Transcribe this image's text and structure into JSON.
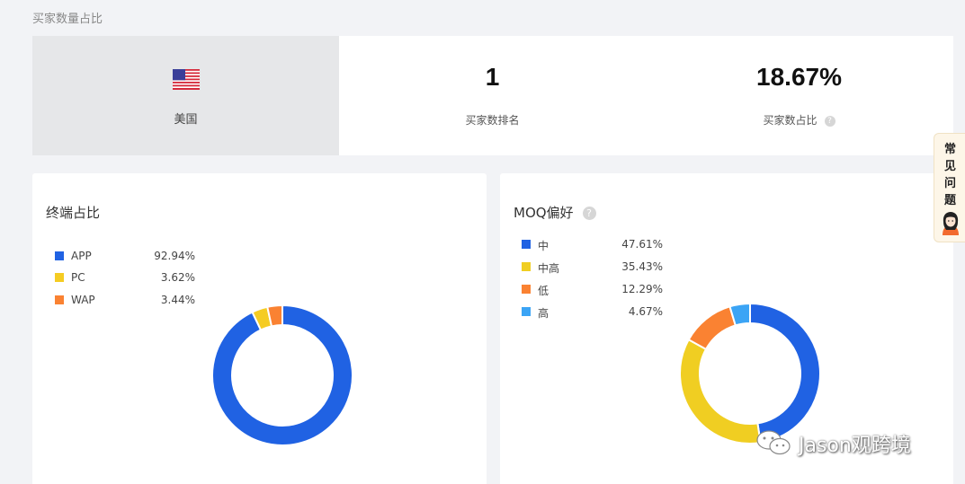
{
  "section_title": "买家数量占比",
  "stats": {
    "country": "美国",
    "rank_value": "1",
    "rank_label": "买家数排名",
    "share_value": "18.67%",
    "share_label": "买家数占比"
  },
  "help_glyph": "?",
  "faq": {
    "label": "常见问题"
  },
  "watermark": {
    "text": "Jason观跨境"
  },
  "chart_data": [
    {
      "type": "pie",
      "title": "终端占比",
      "categories": [
        "APP",
        "PC",
        "WAP"
      ],
      "values": [
        92.94,
        3.62,
        3.44
      ],
      "labels": [
        "92.94%",
        "3.62%",
        "3.44%"
      ],
      "colors": [
        "#2062e3",
        "#f5cc22",
        "#fa8232"
      ],
      "donut": true,
      "legend": "top-left"
    },
    {
      "type": "pie",
      "title": "MOQ偏好",
      "categories": [
        "中",
        "中高",
        "低",
        "高"
      ],
      "values": [
        47.61,
        35.43,
        12.29,
        4.67
      ],
      "labels": [
        "47.61%",
        "35.43%",
        "12.29%",
        "4.67%"
      ],
      "colors": [
        "#2062e3",
        "#f0ce22",
        "#fa8232",
        "#3ba4f5"
      ],
      "donut": true,
      "legend": "top-left"
    }
  ]
}
